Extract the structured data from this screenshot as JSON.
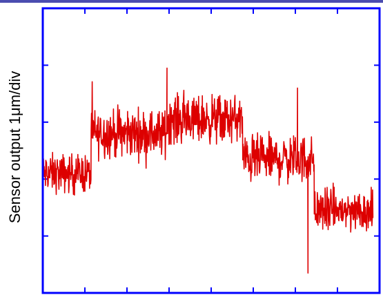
{
  "chart_data": {
    "type": "line",
    "title": "",
    "xlabel": "",
    "ylabel": "Sensor output 1μm/div",
    "grid": false,
    "legend": null,
    "line_color": "#dd0000",
    "frame_color": "#0000ff",
    "top_band_color": "#4b4db0",
    "x_divisions": 8,
    "y_divisions": 5,
    "xlim": [
      0,
      8
    ],
    "ylim": [
      0,
      5
    ],
    "series": [
      {
        "segments": [
          {
            "x_start": 0.0,
            "x_end": 1.15,
            "mean": 2.1,
            "amp": 0.45
          },
          {
            "x_start": 1.15,
            "x_end": 2.95,
            "mean": 2.8,
            "amp": 0.55
          },
          {
            "x_start": 2.95,
            "x_end": 4.75,
            "mean": 3.05,
            "amp": 0.55
          },
          {
            "x_start": 4.75,
            "x_end": 6.45,
            "mean": 2.35,
            "amp": 0.55
          },
          {
            "x_start": 6.45,
            "x_end": 7.85,
            "mean": 1.45,
            "amp": 0.5
          }
        ],
        "outliers": [
          {
            "x": 6.3,
            "y": 0.35
          },
          {
            "x": 2.95,
            "y": 3.95
          },
          {
            "x": 6.05,
            "y": 3.6
          }
        ]
      }
    ]
  }
}
